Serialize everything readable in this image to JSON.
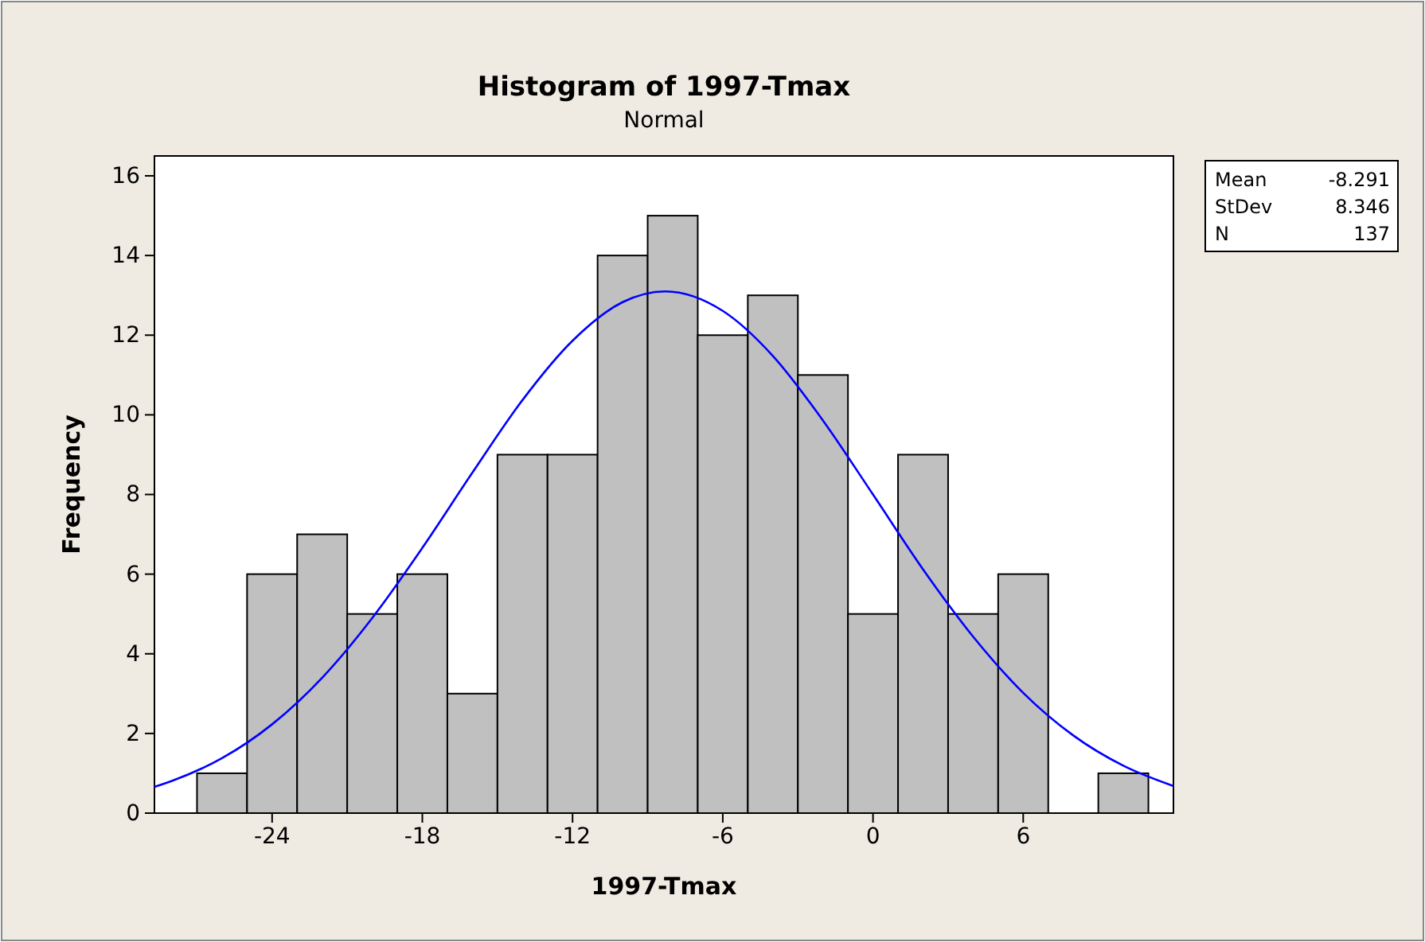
{
  "chart_data": {
    "type": "histogram",
    "title": "Histogram of 1997-Tmax",
    "subtitle": "Normal",
    "xlabel": "1997-Tmax",
    "ylabel": "Frequency",
    "bins": [
      -27,
      -25,
      -23,
      -21,
      -19,
      -17,
      -15,
      -13,
      -11,
      -9,
      -7,
      -5,
      -3,
      -1,
      1,
      3,
      5,
      7,
      9,
      11
    ],
    "series": [
      {
        "color": "#c0c0c0",
        "values": [
          1,
          6,
          7,
          5,
          6,
          3,
          9,
          9,
          14,
          15,
          12,
          13,
          11,
          5,
          9,
          5,
          6,
          0,
          1
        ]
      },
      {
        "type": "line",
        "color": "#0000ff",
        "x": [
          -28.7,
          -28,
          -26,
          -24,
          -22,
          -20,
          -18,
          -16,
          -14,
          -12,
          -10,
          -8.291,
          -6,
          -4,
          -2,
          0,
          2,
          4,
          6,
          8,
          10,
          12
        ],
        "values": [
          0.66,
          0.81,
          1.38,
          2.23,
          3.4,
          4.9,
          6.66,
          8.55,
          10.37,
          11.86,
          12.83,
          13.1,
          12.61,
          11.48,
          9.86,
          8.0,
          6.12,
          4.43,
          3.02,
          1.95,
          1.19,
          0.68
        ]
      }
    ],
    "xlim": [
      -28.7,
      12
    ],
    "ylim": [
      0,
      16.5
    ],
    "xticks": [
      -24,
      -18,
      -12,
      -6,
      0,
      6
    ],
    "yticks": [
      0,
      2,
      4,
      6,
      8,
      10,
      12,
      14,
      16
    ],
    "annotations": [
      "Mean",
      "-8.291",
      "StDev",
      "8.346",
      "N",
      "137"
    ],
    "grid": false
  }
}
